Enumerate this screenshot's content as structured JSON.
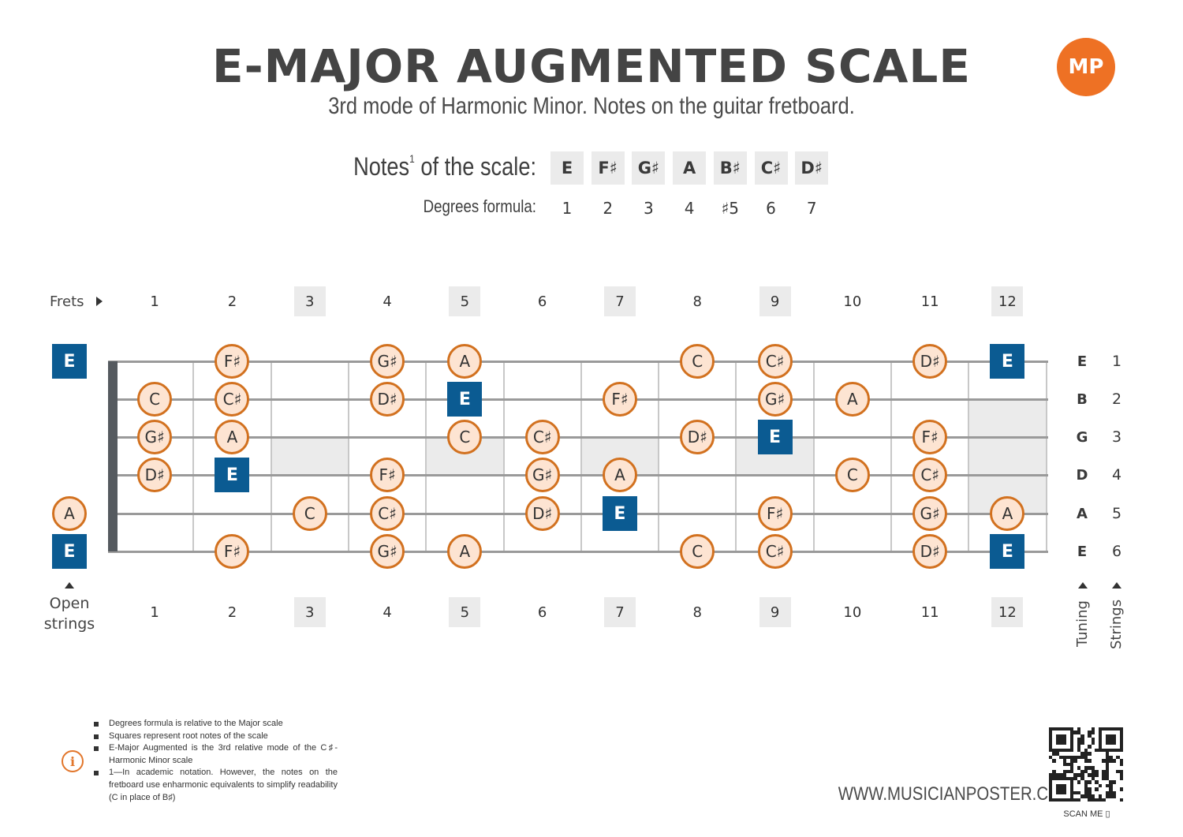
{
  "title": "E-MAJOR AUGMENTED SCALE",
  "subtitle": "3rd mode of Harmonic Minor. Notes on the guitar fretboard.",
  "logo_text": "MP",
  "notes_label": "Notes",
  "notes_label_sup": "1",
  "notes_label_suffix": " of the scale:",
  "degrees_label": "Degrees formula:",
  "scale_notes": [
    "E",
    "F♯",
    "G♯",
    "A",
    "B♯",
    "C♯",
    "D♯"
  ],
  "degrees": [
    "1",
    "2",
    "3",
    "4",
    "♯5",
    "6",
    "7"
  ],
  "frets_label": "Frets",
  "open_label_line1": "Open",
  "open_label_line2": "strings",
  "fret_numbers": [
    "1",
    "2",
    "3",
    "4",
    "5",
    "6",
    "7",
    "8",
    "9",
    "10",
    "11",
    "12"
  ],
  "highlighted_frets": [
    3,
    5,
    7,
    9,
    12
  ],
  "strings": [
    {
      "tuning": "E",
      "number": "1",
      "open": "E",
      "open_root": true,
      "notes": [
        {
          "fret": 2,
          "note": "F♯"
        },
        {
          "fret": 4,
          "note": "G♯"
        },
        {
          "fret": 5,
          "note": "A"
        },
        {
          "fret": 8,
          "note": "C"
        },
        {
          "fret": 9,
          "note": "C♯"
        },
        {
          "fret": 11,
          "note": "D♯"
        },
        {
          "fret": 12,
          "note": "E",
          "root": true
        }
      ]
    },
    {
      "tuning": "B",
      "number": "2",
      "open": null,
      "notes": [
        {
          "fret": 1,
          "note": "C"
        },
        {
          "fret": 2,
          "note": "C♯"
        },
        {
          "fret": 4,
          "note": "D♯"
        },
        {
          "fret": 5,
          "note": "E",
          "root": true
        },
        {
          "fret": 7,
          "note": "F♯"
        },
        {
          "fret": 9,
          "note": "G♯"
        },
        {
          "fret": 10,
          "note": "A"
        }
      ]
    },
    {
      "tuning": "G",
      "number": "3",
      "open": null,
      "notes": [
        {
          "fret": 1,
          "note": "G♯"
        },
        {
          "fret": 2,
          "note": "A"
        },
        {
          "fret": 5,
          "note": "C"
        },
        {
          "fret": 6,
          "note": "C♯"
        },
        {
          "fret": 8,
          "note": "D♯"
        },
        {
          "fret": 9,
          "note": "E",
          "root": true
        },
        {
          "fret": 11,
          "note": "F♯"
        }
      ]
    },
    {
      "tuning": "D",
      "number": "4",
      "open": null,
      "notes": [
        {
          "fret": 1,
          "note": "D♯"
        },
        {
          "fret": 2,
          "note": "E",
          "root": true
        },
        {
          "fret": 4,
          "note": "F♯"
        },
        {
          "fret": 6,
          "note": "G♯"
        },
        {
          "fret": 7,
          "note": "A"
        },
        {
          "fret": 10,
          "note": "C"
        },
        {
          "fret": 11,
          "note": "C♯"
        }
      ]
    },
    {
      "tuning": "A",
      "number": "5",
      "open": "A",
      "open_root": false,
      "notes": [
        {
          "fret": 3,
          "note": "C"
        },
        {
          "fret": 4,
          "note": "C♯"
        },
        {
          "fret": 6,
          "note": "D♯"
        },
        {
          "fret": 7,
          "note": "E",
          "root": true
        },
        {
          "fret": 9,
          "note": "F♯"
        },
        {
          "fret": 11,
          "note": "G♯"
        },
        {
          "fret": 12,
          "note": "A"
        }
      ]
    },
    {
      "tuning": "E",
      "number": "6",
      "open": "E",
      "open_root": true,
      "notes": [
        {
          "fret": 2,
          "note": "F♯"
        },
        {
          "fret": 4,
          "note": "G♯"
        },
        {
          "fret": 5,
          "note": "A"
        },
        {
          "fret": 8,
          "note": "C"
        },
        {
          "fret": 9,
          "note": "C♯"
        },
        {
          "fret": 11,
          "note": "D♯"
        },
        {
          "fret": 12,
          "note": "E",
          "root": true
        }
      ]
    }
  ],
  "tuning_label": "Tuning",
  "strings_label": "Strings",
  "footnotes": [
    "Degrees formula is relative to the Major scale",
    "Squares represent root notes of the scale",
    "E-Major Augmented is the 3rd relative mode of the C♯-Harmonic Minor scale",
    "1—In academic notation. However, the notes on the fretboard use enharmonic equivalents to simplify readability (C in place of B♯)"
  ],
  "website": "WWW.MUSICIANPOSTER.COM",
  "scan_label": "SCAN ME ▯",
  "colors": {
    "accent": "#ee7124",
    "root_fill": "#0b5b92",
    "note_fill": "#fde4d2",
    "note_border": "#d2711f",
    "marker_fill": "#ebebeb"
  }
}
